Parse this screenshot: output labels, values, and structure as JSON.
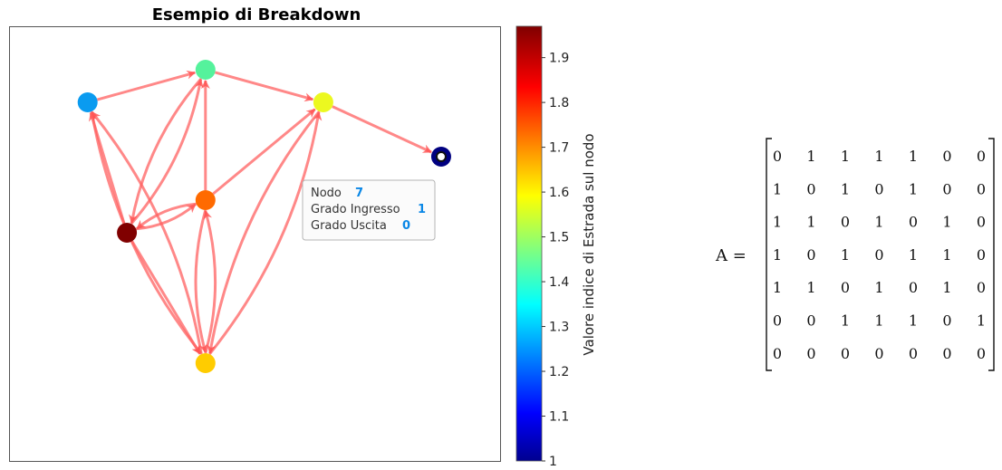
{
  "figure": {
    "title": "Esempio di Breakdown",
    "colorbar": {
      "label": "Valore indice di Estrada sul nodo",
      "min": 1,
      "max": 1.97,
      "ticks": [
        "1",
        "1.1",
        "1.2",
        "1.3",
        "1.4",
        "1.5",
        "1.6",
        "1.7",
        "1.8",
        "1.9"
      ],
      "colormap": "jet"
    },
    "tooltip": {
      "rows": [
        {
          "label": "Nodo",
          "value": "7"
        },
        {
          "label": "Grado Ingresso",
          "value": "1"
        },
        {
          "label": "Grado Uscita",
          "value": "0"
        }
      ]
    },
    "matrix": {
      "label": "A =",
      "rows": [
        [
          "0",
          "1",
          "1",
          "1",
          "1",
          "0",
          "0"
        ],
        [
          "1",
          "0",
          "1",
          "0",
          "1",
          "0",
          "0"
        ],
        [
          "1",
          "1",
          "0",
          "1",
          "0",
          "1",
          "0"
        ],
        [
          "1",
          "0",
          "1",
          "0",
          "1",
          "1",
          "0"
        ],
        [
          "1",
          "1",
          "0",
          "1",
          "0",
          "1",
          "0"
        ],
        [
          "0",
          "0",
          "1",
          "1",
          "1",
          "0",
          "1"
        ],
        [
          "0",
          "0",
          "0",
          "0",
          "0",
          "0",
          "0"
        ]
      ]
    }
  },
  "chart_data": {
    "type": "graph",
    "title": "Esempio di Breakdown",
    "nodes": [
      {
        "id": 1,
        "x": 3,
        "y": 10.5,
        "value": 1.97,
        "color": "#800000"
      },
      {
        "id": 2,
        "x": 2,
        "y": 16.5,
        "value": 1.28,
        "color": "#0a9bf0"
      },
      {
        "id": 3,
        "x": 5,
        "y": 18.0,
        "value": 1.45,
        "color": "#55f29c"
      },
      {
        "id": 4,
        "x": 5,
        "y": 12.0,
        "value": 1.73,
        "color": "#ff6a00"
      },
      {
        "id": 5,
        "x": 5,
        "y": 4.5,
        "value": 1.64,
        "color": "#ffcc00"
      },
      {
        "id": 6,
        "x": 8,
        "y": 16.5,
        "value": 1.6,
        "color": "#ecf820"
      },
      {
        "id": 7,
        "x": 11,
        "y": 14.0,
        "value": 1.0,
        "color": "#000080"
      }
    ],
    "edges": [
      {
        "from": 1,
        "to": 2
      },
      {
        "from": 1,
        "to": 3
      },
      {
        "from": 1,
        "to": 4
      },
      {
        "from": 1,
        "to": 5
      },
      {
        "from": 2,
        "to": 3
      },
      {
        "from": 2,
        "to": 5
      },
      {
        "from": 3,
        "to": 1
      },
      {
        "from": 3,
        "to": 6
      },
      {
        "from": 4,
        "to": 1
      },
      {
        "from": 4,
        "to": 3
      },
      {
        "from": 4,
        "to": 5
      },
      {
        "from": 4,
        "to": 6
      },
      {
        "from": 5,
        "to": 2
      },
      {
        "from": 5,
        "to": 4
      },
      {
        "from": 5,
        "to": 6
      },
      {
        "from": 6,
        "to": 7
      },
      {
        "from": 6,
        "to": 5
      }
    ],
    "edge_color": "#ff6060",
    "colorbar_range": [
      1,
      1.97
    ]
  }
}
